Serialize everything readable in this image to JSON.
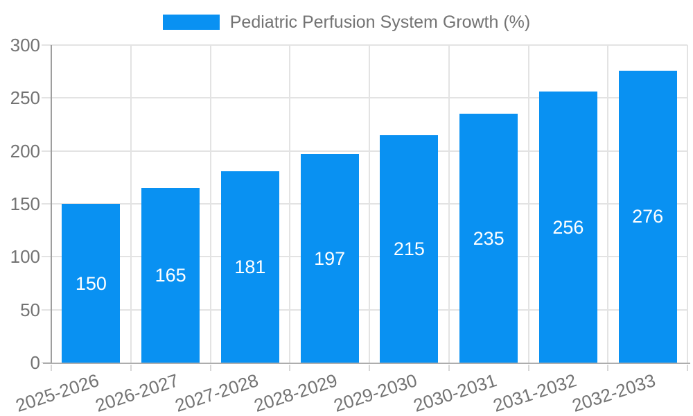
{
  "chart_data": {
    "type": "bar",
    "title": "Pediatric Perfusion System Growth (%)",
    "categories": [
      "2025-2026",
      "2026-2027",
      "2027-2028",
      "2028-2029",
      "2029-2030",
      "2030-2031",
      "2031-2032",
      "2032-2033"
    ],
    "values": [
      150,
      165,
      181,
      197,
      215,
      235,
      256,
      276
    ],
    "xlabel": "",
    "ylabel": "",
    "ylim": [
      0,
      300
    ],
    "yticks": [
      0,
      50,
      100,
      150,
      200,
      250,
      300
    ],
    "grid": true,
    "legend_position": "top",
    "colors": {
      "bar": "#0991F2",
      "text": "#737373",
      "grid": "#E3E3E3",
      "axis_y": "#9E9E9E",
      "axis_x": "#ADADAD",
      "tick": "#D7D7D7",
      "value_label": "#FFFFFF",
      "background": "#FFFFFF"
    }
  }
}
